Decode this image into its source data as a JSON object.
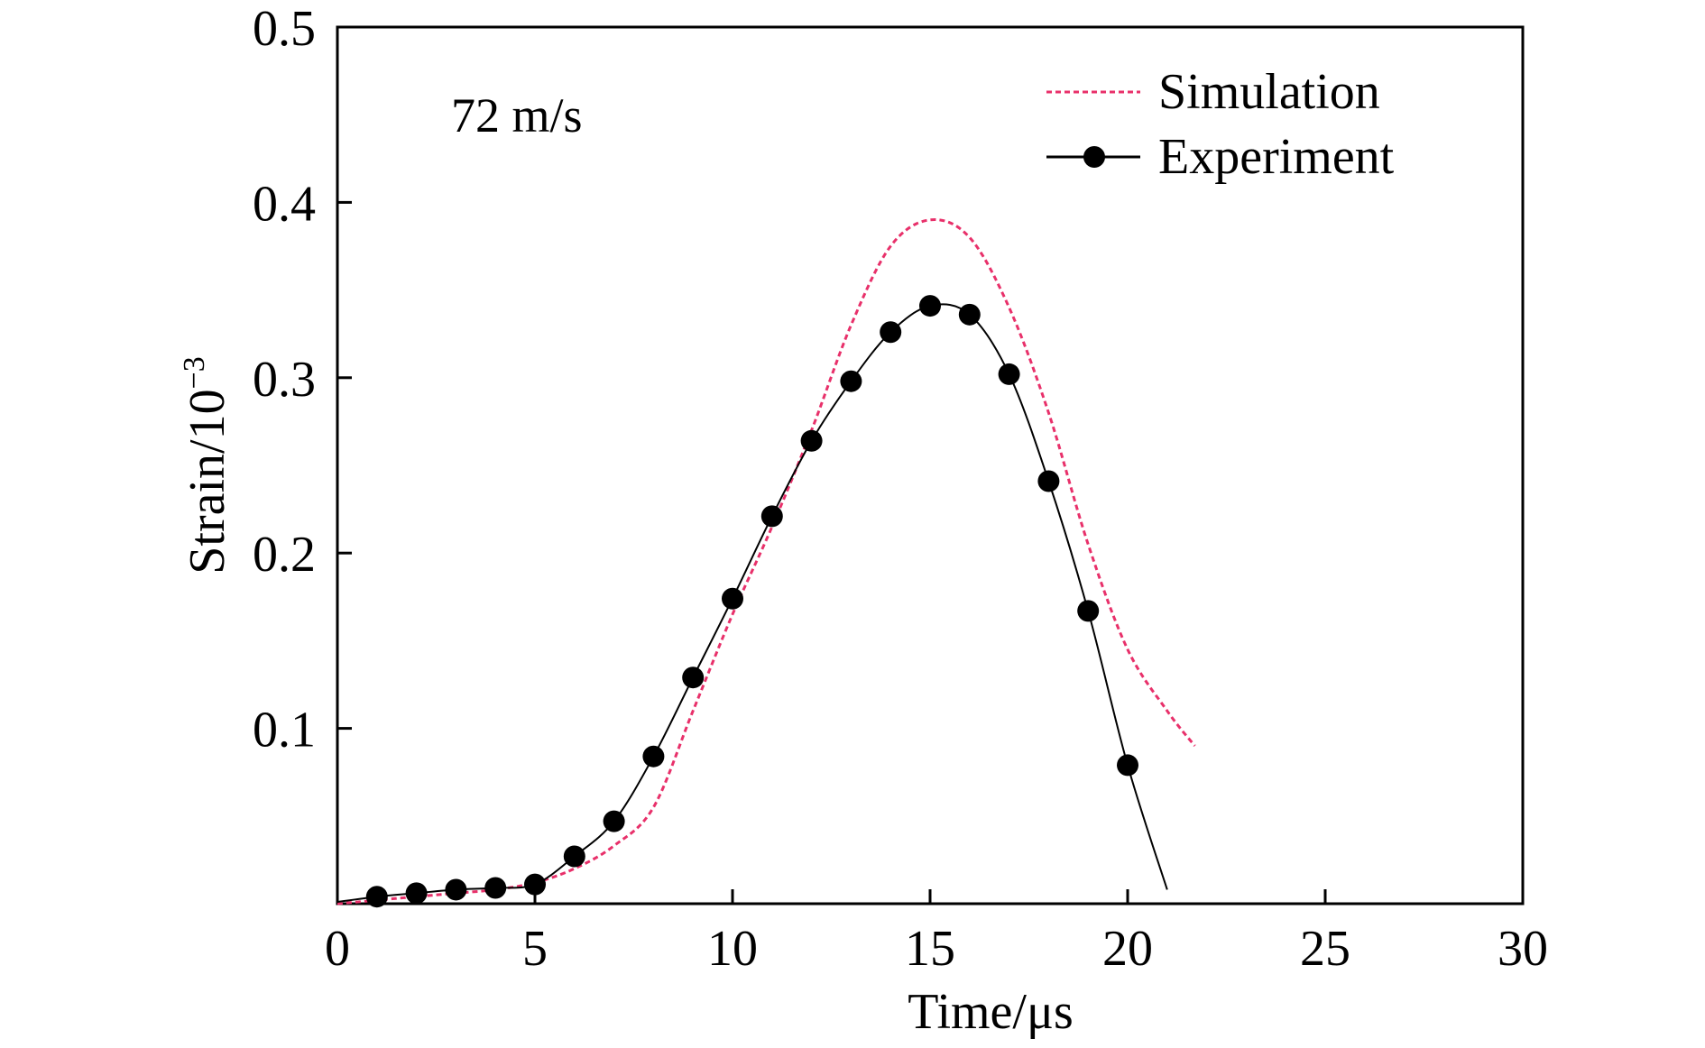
{
  "chart_data": {
    "type": "line",
    "annotation": "72 m/s",
    "xlabel": "Time/μs",
    "ylabel": "Strain/10",
    "ylabel_superscript": "−3",
    "xlim": [
      0,
      30
    ],
    "ylim": [
      0,
      0.5
    ],
    "x_ticks": [
      0,
      5,
      10,
      15,
      20,
      25,
      30
    ],
    "x_tick_labels": [
      "0",
      "5",
      "10",
      "15",
      "20",
      "25",
      "30"
    ],
    "y_ticks": [
      0.1,
      0.2,
      0.3,
      0.4,
      0.5
    ],
    "y_tick_labels": [
      "0.1",
      "0.2",
      "0.3",
      "0.4",
      "0.5"
    ],
    "grid": false,
    "legend_position": "top-right",
    "series": [
      {
        "name": "Simulation",
        "style": "dashed",
        "color": "#e8306a",
        "x": [
          0,
          1,
          2,
          3,
          4,
          5,
          6,
          7,
          8,
          9,
          10,
          11,
          12,
          13,
          14,
          15,
          16,
          17,
          18,
          19,
          20,
          21,
          21.7
        ],
        "y": [
          0,
          0.002,
          0.004,
          0.006,
          0.008,
          0.012,
          0.02,
          0.033,
          0.055,
          0.11,
          0.165,
          0.215,
          0.27,
          0.33,
          0.375,
          0.39,
          0.38,
          0.34,
          0.28,
          0.205,
          0.145,
          0.11,
          0.09
        ]
      },
      {
        "name": "Experiment",
        "style": "line-marker",
        "color": "#000000",
        "x": [
          0,
          1,
          2,
          3,
          4,
          5,
          6,
          7,
          8,
          9,
          10,
          11,
          12,
          13,
          14,
          15,
          16,
          17,
          18,
          19,
          20,
          21
        ],
        "y": [
          0.001,
          0.004,
          0.006,
          0.008,
          0.009,
          0.011,
          0.027,
          0.047,
          0.084,
          0.129,
          0.174,
          0.221,
          0.264,
          0.298,
          0.326,
          0.341,
          0.336,
          0.302,
          0.241,
          0.167,
          0.079,
          0.008
        ]
      }
    ]
  }
}
